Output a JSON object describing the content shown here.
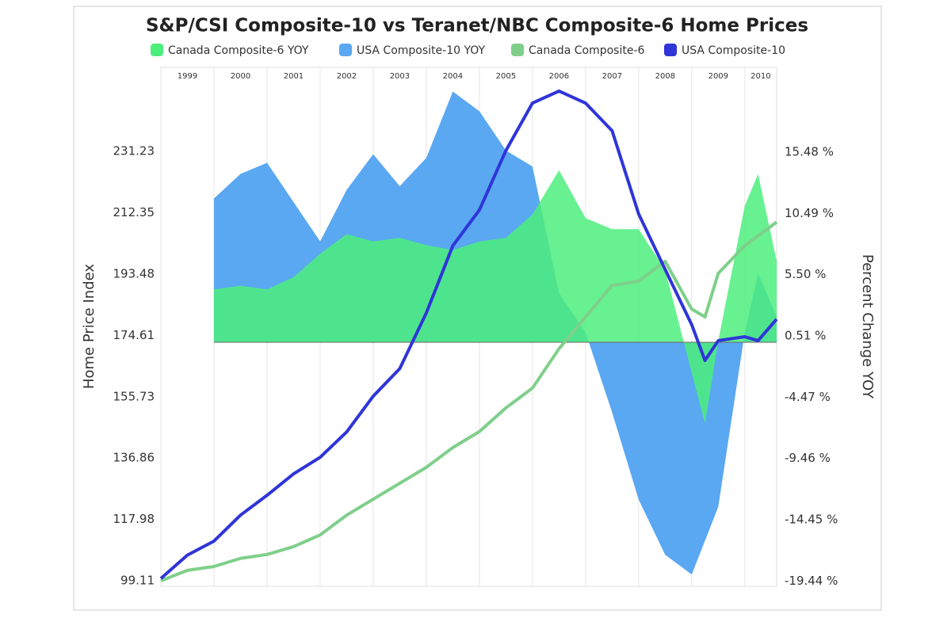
{
  "chart_data": {
    "type": "line-area",
    "title": "S&P/CSI Composite-10 vs Teranet/NBC Composite-6 Home Prices",
    "ylabel": "Home Price Index",
    "y2label": "Percent Change YOY",
    "xlim": [
      1999,
      2010.6
    ],
    "xticks": [
      1999,
      2000,
      2001,
      2002,
      2003,
      2004,
      2005,
      2006,
      2007,
      2008,
      2009,
      2010
    ],
    "ylim": [
      97.4,
      257.1
    ],
    "yticks": [
      99.11,
      117.98,
      136.86,
      155.73,
      174.61,
      193.48,
      212.35,
      231.23
    ],
    "y2lim": [
      -19.86,
      22.37
    ],
    "y2ticks": [
      {
        "value": -19.44,
        "label": "-19.44 %"
      },
      {
        "value": -14.45,
        "label": "-14.45 %"
      },
      {
        "value": -9.46,
        "label": "-9.46 %"
      },
      {
        "value": -4.47,
        "label": "-4.47 %"
      },
      {
        "value": 0.51,
        "label": "0.51 %"
      },
      {
        "value": 5.5,
        "label": "5.50 %"
      },
      {
        "value": 10.49,
        "label": "10.49 %"
      },
      {
        "value": 15.48,
        "label": "15.48 %"
      }
    ],
    "series": [
      {
        "name": "Canada Composite-6 YOY",
        "color": "#4cef7c",
        "kind": "area",
        "axis": "y2",
        "x": [
          2000,
          2000.5,
          2001,
          2001.5,
          2002,
          2002.5,
          2003,
          2003.5,
          2004,
          2004.5,
          2005,
          2005.5,
          2006,
          2006.5,
          2007,
          2007.5,
          2008,
          2008.5,
          2009,
          2009.25,
          2009.5,
          2010,
          2010.25,
          2010.6
        ],
        "values": [
          4.3,
          4.6,
          4.3,
          5.3,
          7.2,
          8.8,
          8.2,
          8.5,
          7.9,
          7.5,
          8.2,
          8.5,
          10.4,
          14,
          10.1,
          9.2,
          9.2,
          5.9,
          -2.5,
          -6.6,
          0.1,
          11.1,
          13.7,
          6.6
        ]
      },
      {
        "name": "USA Composite-10 YOY",
        "color": "#5aa7f2",
        "kind": "area",
        "axis": "y2",
        "x": [
          2000,
          2000.5,
          2001,
          2001.5,
          2002,
          2002.5,
          2003,
          2003.5,
          2004,
          2004.5,
          2005,
          2005.5,
          2006,
          2006.5,
          2007,
          2007.5,
          2008,
          2008.5,
          2009,
          2009.5,
          2010,
          2010.25,
          2010.6
        ],
        "values": [
          11.7,
          13.7,
          14.6,
          11.4,
          8.2,
          12.4,
          15.3,
          12.7,
          15,
          20.4,
          18.8,
          15.6,
          14.3,
          4,
          0.8,
          -5.7,
          -12.8,
          -17.3,
          -18.9,
          -13.4,
          0.8,
          5.6,
          2.1
        ]
      },
      {
        "name": "Canada Composite-6",
        "color": "#7fcf8a",
        "kind": "line",
        "x": [
          1999,
          1999.5,
          2000,
          2000.5,
          2001,
          2001.5,
          2002,
          2002.5,
          2003,
          2003.5,
          2004,
          2004.5,
          2005,
          2005.5,
          2006,
          2006.5,
          2007,
          2007.5,
          2008,
          2008.5,
          2009,
          2009.25,
          2009.5,
          2010,
          2010.6
        ],
        "values": [
          99.1,
          102.3,
          103.5,
          106,
          107.2,
          109.6,
          113.2,
          119.3,
          124.2,
          129.1,
          134,
          140.1,
          145,
          152.3,
          158.4,
          170.5,
          180.3,
          190,
          191.3,
          197.4,
          182.7,
          180.3,
          193.7,
          202.2,
          209.5
        ]
      },
      {
        "name": "USA Composite-10",
        "color": "#2f35d8",
        "kind": "line",
        "x": [
          1999,
          1999.5,
          2000,
          2000.5,
          2001,
          2001.5,
          2002,
          2002.5,
          2003,
          2003.5,
          2004,
          2004.5,
          2005,
          2005.5,
          2006,
          2006.5,
          2007,
          2007.5,
          2008,
          2008.5,
          2009,
          2009.25,
          2009.5,
          2010,
          2010.25,
          2010.6
        ],
        "values": [
          99.8,
          107,
          111.3,
          119.3,
          125.4,
          132,
          137.1,
          144.9,
          155.9,
          164.4,
          181.5,
          202.2,
          213.2,
          231.5,
          246.1,
          249.8,
          246.1,
          237.6,
          212,
          194.9,
          177.9,
          166.9,
          173,
          174.2,
          173,
          179.6
        ]
      }
    ]
  }
}
